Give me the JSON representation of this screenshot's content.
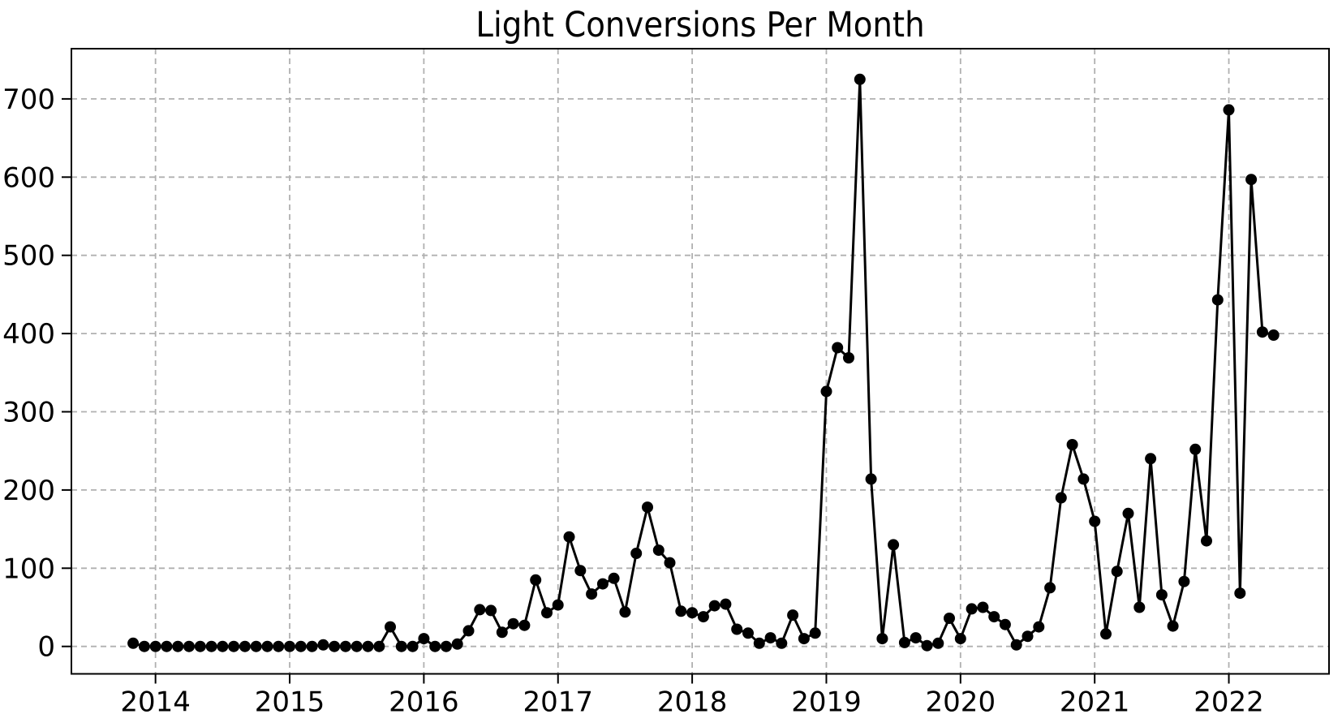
{
  "figure": {
    "background": "#ffffff"
  },
  "chart_data": {
    "type": "line",
    "title": "Light Conversions Per Month",
    "xlabel": "",
    "ylabel": "",
    "legend_position": "none",
    "grid": true,
    "grid_style": "dashed",
    "grid_color": "#b0b0b0",
    "line_color": "#000000",
    "marker": "circle",
    "marker_color": "#000000",
    "axis_color": "#000000",
    "x_tick_labels": [
      "2014",
      "2015",
      "2016",
      "2017",
      "2018",
      "2019",
      "2020",
      "2021",
      "2022"
    ],
    "y_tick_labels": [
      "0",
      "100",
      "200",
      "300",
      "400",
      "500",
      "600",
      "700"
    ],
    "y_ticks": [
      0,
      100,
      200,
      300,
      400,
      500,
      600,
      700
    ],
    "ylim": [
      -36,
      761
    ],
    "x": [
      "2013-11",
      "2013-12",
      "2014-01",
      "2014-02",
      "2014-03",
      "2014-04",
      "2014-05",
      "2014-06",
      "2014-07",
      "2014-08",
      "2014-09",
      "2014-10",
      "2014-11",
      "2014-12",
      "2015-01",
      "2015-02",
      "2015-03",
      "2015-04",
      "2015-05",
      "2015-06",
      "2015-07",
      "2015-08",
      "2015-09",
      "2015-10",
      "2015-11",
      "2015-12",
      "2016-01",
      "2016-02",
      "2016-03",
      "2016-04",
      "2016-05",
      "2016-06",
      "2016-07",
      "2016-08",
      "2016-09",
      "2016-10",
      "2016-11",
      "2016-12",
      "2017-01",
      "2017-02",
      "2017-03",
      "2017-04",
      "2017-05",
      "2017-06",
      "2017-07",
      "2017-08",
      "2017-09",
      "2017-10",
      "2017-11",
      "2017-12",
      "2018-01",
      "2018-02",
      "2018-03",
      "2018-04",
      "2018-05",
      "2018-06",
      "2018-07",
      "2018-08",
      "2018-09",
      "2018-10",
      "2018-11",
      "2018-12",
      "2019-01",
      "2019-02",
      "2019-03",
      "2019-04",
      "2019-05",
      "2019-06",
      "2019-07",
      "2019-08",
      "2019-09",
      "2019-10",
      "2019-11",
      "2019-12",
      "2020-01",
      "2020-02",
      "2020-03",
      "2020-04",
      "2020-05",
      "2020-06",
      "2020-07",
      "2020-08",
      "2020-09",
      "2020-10",
      "2020-11",
      "2020-12",
      "2021-01",
      "2021-02",
      "2021-03",
      "2021-04",
      "2021-05",
      "2021-06",
      "2021-07",
      "2021-08",
      "2021-09",
      "2021-10",
      "2021-11",
      "2021-12",
      "2022-01",
      "2022-02",
      "2022-03",
      "2022-04",
      "2022-05"
    ],
    "values": [
      4,
      0,
      0,
      0,
      0,
      0,
      0,
      0,
      0,
      0,
      0,
      0,
      0,
      0,
      0,
      0,
      0,
      2,
      0,
      0,
      0,
      0,
      0,
      25,
      0,
      0,
      10,
      0,
      0,
      3,
      20,
      47,
      46,
      18,
      29,
      27,
      85,
      43,
      53,
      140,
      97,
      67,
      80,
      87,
      44,
      119,
      178,
      123,
      107,
      45,
      43,
      38,
      52,
      54,
      22,
      17,
      4,
      11,
      4,
      40,
      10,
      17,
      326,
      382,
      369,
      725,
      214,
      10,
      130,
      5,
      11,
      1,
      4,
      36,
      10,
      48,
      50,
      38,
      28,
      2,
      13,
      25,
      75,
      190,
      258,
      214,
      160,
      16,
      96,
      170,
      50,
      240,
      66,
      26,
      83,
      252,
      135,
      443,
      686,
      68,
      597,
      402,
      398
    ]
  }
}
